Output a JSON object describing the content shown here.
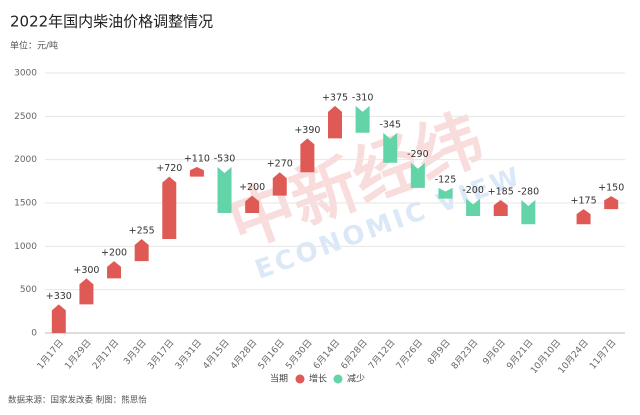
{
  "chart_data": {
    "type": "waterfall",
    "title": "2022年国内柴油价格调整情况",
    "subtitle": "单位：元/吨",
    "source": "数据来源：国家发改委 制图：熊思怡",
    "watermark": "中新经纬",
    "watermark_en": "ECONOMIC VIEW",
    "legend_title": "当期",
    "categories": [
      "1月17日",
      "1月29日",
      "2月17日",
      "3月3日",
      "3月17日",
      "3月31日",
      "4月15日",
      "4月28日",
      "5月16日",
      "5月30日",
      "6月14日",
      "6月28日",
      "7月12日",
      "7月26日",
      "8月9日",
      "8月23日",
      "9月6日",
      "9月21日",
      "10月10日",
      "10月24日",
      "11月7日"
    ],
    "values": [
      330,
      300,
      200,
      255,
      720,
      110,
      -530,
      200,
      270,
      390,
      375,
      -310,
      -345,
      -290,
      -125,
      -200,
      185,
      -280,
      null,
      175,
      150
    ],
    "value_labels": [
      "+330",
      "+300",
      "+200",
      "+255",
      "+720",
      "+110",
      "-530",
      "+200",
      "+270",
      "+390",
      "+375",
      "-310",
      "-345",
      "-290",
      "-125",
      "-200",
      "+185",
      "-280",
      null,
      "+175",
      "+150"
    ],
    "series": [
      {
        "name": "增长",
        "color": "#e05a55"
      },
      {
        "name": "减少",
        "color": "#62d4a7"
      }
    ],
    "ylim": [
      0,
      3000
    ],
    "yticks": [
      0,
      500,
      1000,
      1500,
      2000,
      2500,
      3000
    ],
    "grid": true
  }
}
